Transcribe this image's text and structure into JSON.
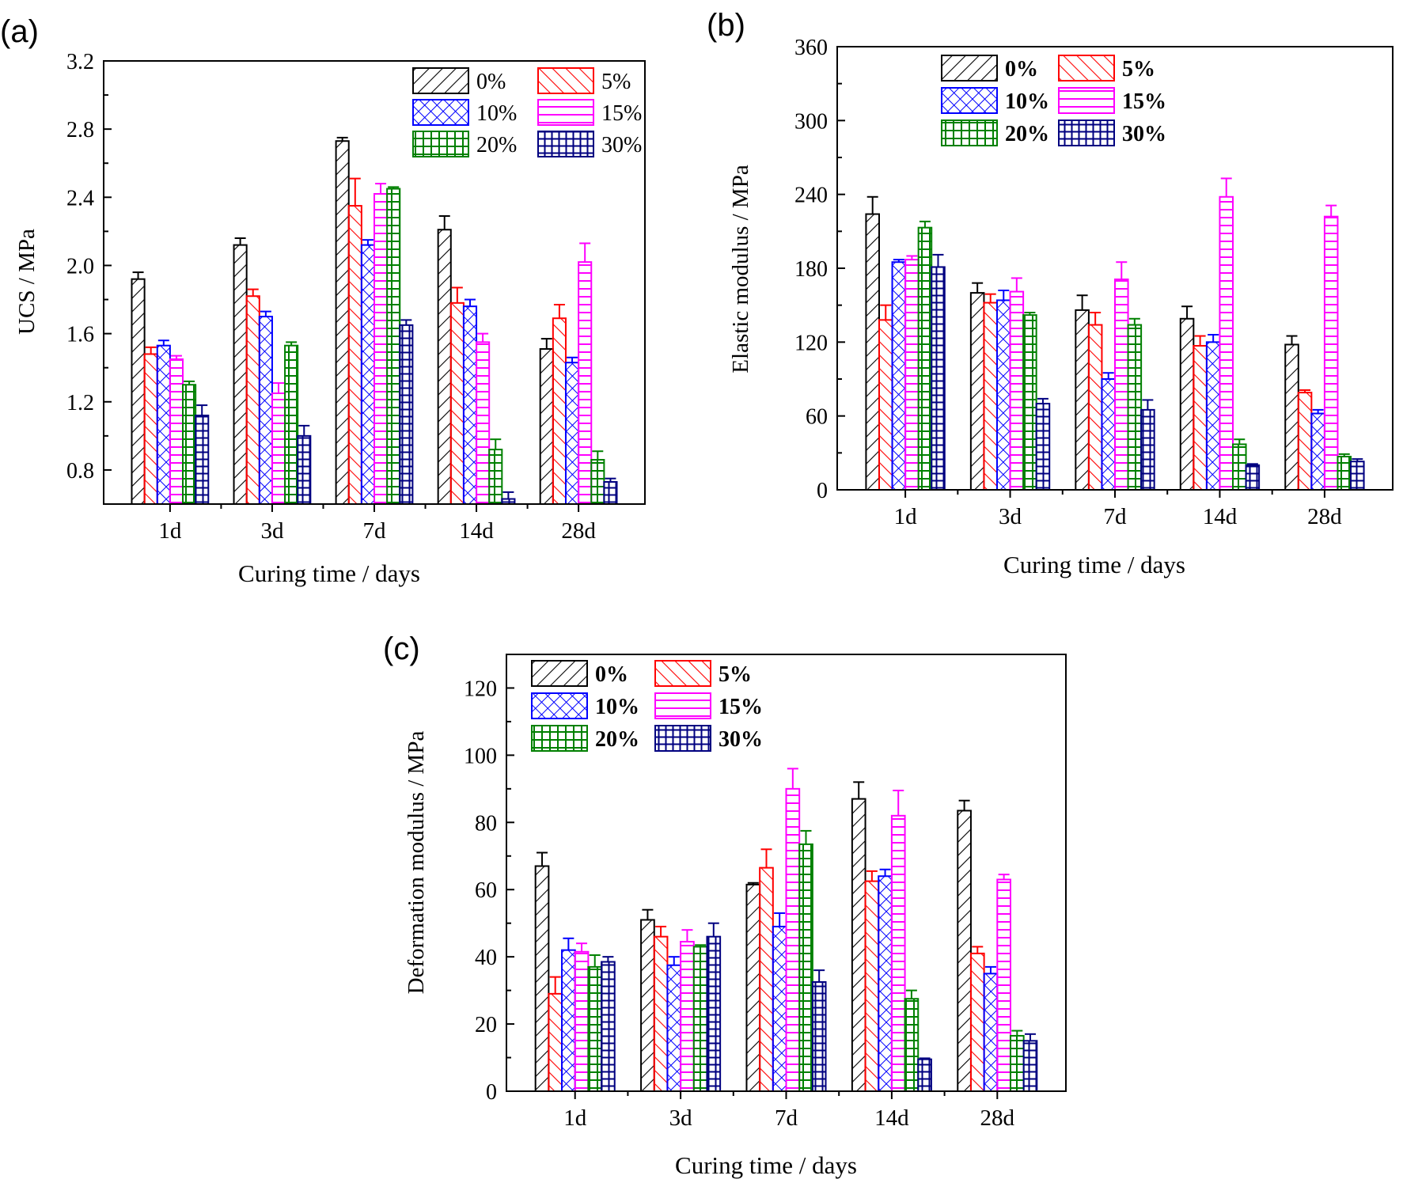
{
  "series_styles": [
    {
      "name": "0%",
      "color": "#000000",
      "pattern": "diag-right"
    },
    {
      "name": "5%",
      "color": "#ff0000",
      "pattern": "diag-left"
    },
    {
      "name": "10%",
      "color": "#0000ff",
      "pattern": "cross"
    },
    {
      "name": "15%",
      "color": "#ff00ff",
      "pattern": "horizontal"
    },
    {
      "name": "20%",
      "color": "#008000",
      "pattern": "grid"
    },
    {
      "name": "30%",
      "color": "#000080",
      "pattern": "grid-dense"
    }
  ],
  "chart_data": [
    {
      "panel": "(a)",
      "type": "bar",
      "title": "",
      "xlabel": "Curing time / days",
      "ylabel": "UCS / MPa",
      "categories": [
        "1d",
        "3d",
        "7d",
        "14d",
        "28d"
      ],
      "ylim": [
        0.6,
        3.2
      ],
      "yticks": [
        0.8,
        1.2,
        1.6,
        2.0,
        2.4,
        2.8,
        3.2
      ],
      "ytick_labels": [
        "0.8",
        "1.2",
        "1.6",
        "2.0",
        "2.4",
        "2.8",
        "3.2"
      ],
      "legend": "top-right",
      "series": [
        {
          "name": "0%",
          "values": [
            1.92,
            2.12,
            2.73,
            2.21,
            1.51
          ],
          "errors": [
            0.04,
            0.04,
            0.02,
            0.08,
            0.06
          ]
        },
        {
          "name": "5%",
          "values": [
            1.48,
            1.82,
            2.35,
            1.78,
            1.69
          ],
          "errors": [
            0.04,
            0.04,
            0.16,
            0.09,
            0.08
          ]
        },
        {
          "name": "10%",
          "values": [
            1.53,
            1.7,
            2.12,
            1.76,
            1.43
          ],
          "errors": [
            0.03,
            0.03,
            0.03,
            0.04,
            0.03
          ]
        },
        {
          "name": "15%",
          "values": [
            1.45,
            1.25,
            2.42,
            1.55,
            2.02
          ],
          "errors": [
            0.02,
            0.06,
            0.06,
            0.05,
            0.11
          ]
        },
        {
          "name": "20%",
          "values": [
            1.3,
            1.53,
            2.45,
            0.92,
            0.86
          ],
          "errors": [
            0.02,
            0.02,
            0.01,
            0.06,
            0.05
          ]
        },
        {
          "name": "30%",
          "values": [
            1.12,
            1.0,
            1.65,
            0.63,
            0.73
          ],
          "errors": [
            0.06,
            0.06,
            0.03,
            0.04,
            0.02
          ]
        }
      ]
    },
    {
      "panel": "(b)",
      "type": "bar",
      "title": "",
      "xlabel": "Curing time / days",
      "ylabel": "Elastic modulus / MPa",
      "categories": [
        "1d",
        "3d",
        "7d",
        "14d",
        "28d"
      ],
      "ylim": [
        0,
        360
      ],
      "yticks": [
        0,
        60,
        120,
        180,
        240,
        300,
        360
      ],
      "ytick_labels": [
        "0",
        "60",
        "120",
        "180",
        "240",
        "300",
        "360"
      ],
      "legend": "top-left",
      "series": [
        {
          "name": "0%",
          "values": [
            224,
            160,
            146,
            139,
            118
          ],
          "errors": [
            14,
            8,
            12,
            10,
            7
          ]
        },
        {
          "name": "5%",
          "values": [
            138,
            152,
            134,
            117,
            79
          ],
          "errors": [
            12,
            7,
            10,
            8,
            2
          ]
        },
        {
          "name": "10%",
          "values": [
            185,
            154,
            90,
            120,
            62
          ],
          "errors": [
            2,
            8,
            5,
            6,
            3
          ]
        },
        {
          "name": "15%",
          "values": [
            187,
            161,
            171,
            238,
            222
          ],
          "errors": [
            3,
            11,
            14,
            15,
            9
          ]
        },
        {
          "name": "20%",
          "values": [
            213,
            142,
            134,
            37,
            27
          ],
          "errors": [
            5,
            2,
            5,
            4,
            2
          ]
        },
        {
          "name": "30%",
          "values": [
            181,
            70,
            65,
            20,
            23
          ],
          "errors": [
            10,
            4,
            8,
            1,
            2
          ]
        }
      ]
    },
    {
      "panel": "(c)",
      "type": "bar",
      "title": "",
      "xlabel": "Curing time / days",
      "ylabel": "Deformation modulus / MPa",
      "categories": [
        "1d",
        "3d",
        "7d",
        "14d",
        "28d"
      ],
      "ylim": [
        0,
        130
      ],
      "yticks": [
        0,
        20,
        40,
        60,
        80,
        100,
        120
      ],
      "ytick_labels": [
        "0",
        "20",
        "40",
        "60",
        "80",
        "100",
        "120"
      ],
      "legend": "top-left",
      "series": [
        {
          "name": "0%",
          "values": [
            67,
            51,
            61.5,
            87,
            83.5
          ],
          "errors": [
            4,
            3,
            0.5,
            5,
            3
          ]
        },
        {
          "name": "5%",
          "values": [
            29,
            46,
            66.5,
            62.5,
            41
          ],
          "errors": [
            5,
            3,
            5.5,
            3,
            2
          ]
        },
        {
          "name": "10%",
          "values": [
            42,
            37.5,
            49,
            64,
            35
          ],
          "errors": [
            3.5,
            2.5,
            4,
            2,
            2
          ]
        },
        {
          "name": "15%",
          "values": [
            41.5,
            44.5,
            90,
            82,
            63
          ],
          "errors": [
            2.5,
            3.5,
            6,
            7.5,
            1.5
          ]
        },
        {
          "name": "20%",
          "values": [
            37,
            43,
            73.5,
            27.5,
            16.5
          ],
          "errors": [
            3.5,
            0.5,
            4,
            2.5,
            1.5
          ]
        },
        {
          "name": "30%",
          "values": [
            38.5,
            46,
            32.5,
            9.5,
            15
          ],
          "errors": [
            1.5,
            4,
            3.5,
            0.3,
            2
          ]
        }
      ]
    }
  ]
}
